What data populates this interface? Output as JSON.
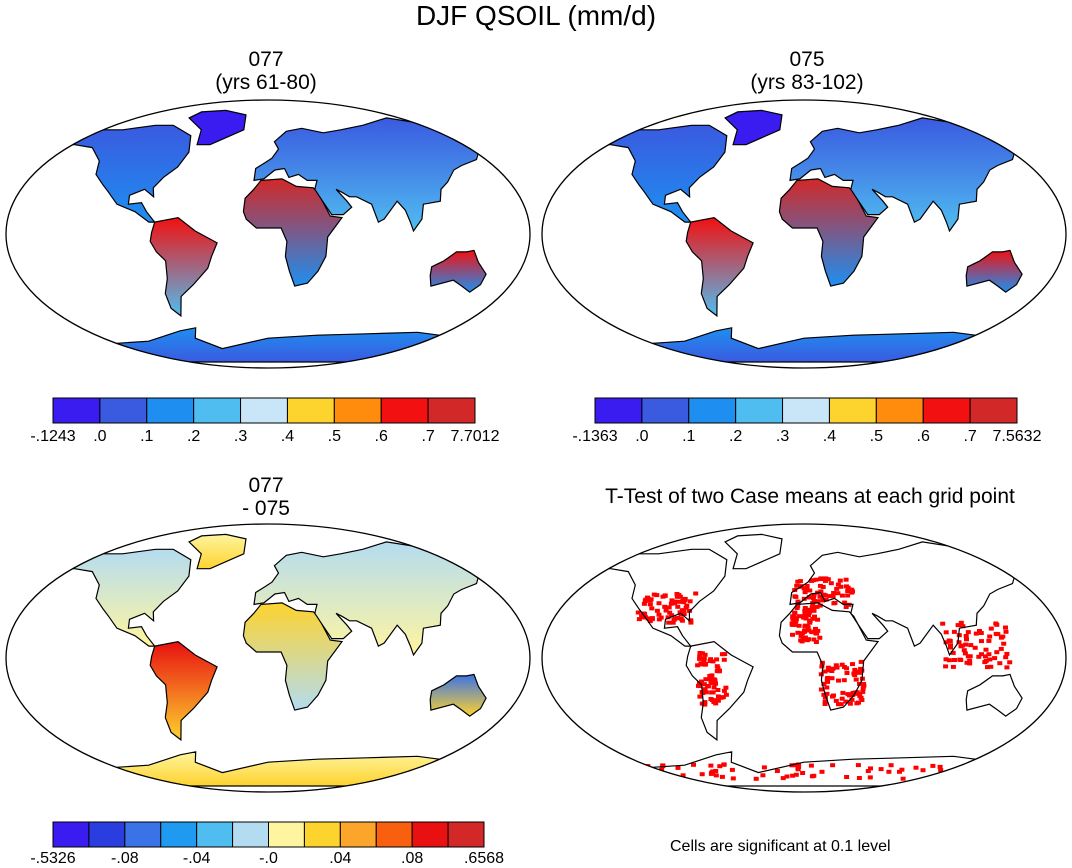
{
  "title": "DJF QSOIL (mm/d)",
  "panels": [
    {
      "id": "case1",
      "title_line1": "077",
      "title_line2": "(yrs 61-80)",
      "colorbar": {
        "colors": [
          "#3b1cf0",
          "#3a5ae0",
          "#1e8ff0",
          "#50bdf0",
          "#c8e6f8",
          "#fdd32e",
          "#ff8c0c",
          "#f21010",
          "#d22828"
        ],
        "labels": [
          "-.1243",
          ".0",
          ".1",
          ".2",
          ".3",
          ".4",
          ".5",
          ".6",
          ".7",
          "7.7012"
        ]
      }
    },
    {
      "id": "case2",
      "title_line1": "075",
      "title_line2": "(yrs 83-102)",
      "colorbar": {
        "colors": [
          "#3b1cf0",
          "#3a5ae0",
          "#1e8ff0",
          "#50bdf0",
          "#c8e6f8",
          "#fdd32e",
          "#ff8c0c",
          "#f21010",
          "#d22828"
        ],
        "labels": [
          "-.1363",
          ".0",
          ".1",
          ".2",
          ".3",
          ".4",
          ".5",
          ".6",
          ".7",
          "7.5632"
        ]
      }
    },
    {
      "id": "diff",
      "title_line1": "077",
      "title_line2": "- 075",
      "colorbar": {
        "colors": [
          "#3b1cf0",
          "#2a3ee0",
          "#3a72e8",
          "#1e9af0",
          "#50bdf0",
          "#b4dcf0",
          "#fff5a0",
          "#fdd32e",
          "#fba52a",
          "#f86010",
          "#e81010",
          "#d22828"
        ],
        "labels": [
          "-.5326",
          "-.08",
          "-.04",
          "-.0",
          ".04",
          ".08",
          ".6568"
        ]
      }
    },
    {
      "id": "ttest",
      "title": "T-Test of two Case means at each grid point",
      "note": "Cells are significant at 0.1 level"
    }
  ]
}
